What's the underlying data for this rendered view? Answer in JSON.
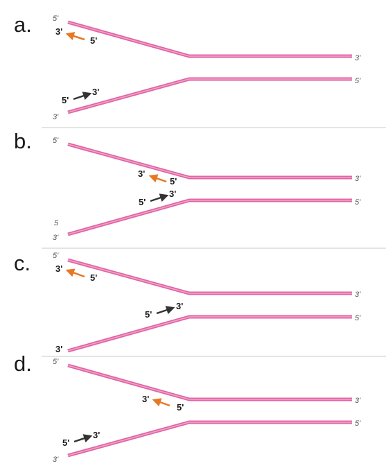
{
  "colors": {
    "strand": "#e064a4",
    "strand_highlight": "#f2a3c9",
    "primer_orange": "#e87722",
    "primer_dark": "#333333",
    "divider": "#c8c8c8"
  },
  "panels": [
    {
      "letter": "a.",
      "top_left_end": "5'",
      "top_right_end": "3'",
      "bottom_left_end": "3'",
      "bottom_right_end": "5'",
      "orange_primer": {
        "three_prime": "3'",
        "five_prime": "5'"
      },
      "dark_primer": {
        "five_prime": "5'",
        "three_prime": "3'"
      }
    },
    {
      "letter": "b.",
      "top_left_end": "5'",
      "top_right_end": "3'",
      "bottom_left_end_upper": "5",
      "bottom_left_end": "3'",
      "bottom_right_end": "5'",
      "orange_primer": {
        "three_prime": "3'",
        "five_prime": "5'"
      },
      "dark_primer": {
        "five_prime": "5'",
        "three_prime": "3'"
      }
    },
    {
      "letter": "c.",
      "top_left_end": "5'",
      "top_right_end": "3'",
      "bottom_left_end": "3'",
      "bottom_right_end": "5'",
      "orange_primer": {
        "three_prime": "3'",
        "five_prime": "5'"
      },
      "dark_primer": {
        "five_prime": "5'",
        "three_prime": "3'"
      }
    },
    {
      "letter": "d.",
      "top_left_end": "5'",
      "top_right_end": "3'",
      "bottom_left_end": "3'",
      "bottom_right_end": "5'",
      "orange_primer": {
        "three_prime": "3'",
        "five_prime": "5'"
      },
      "dark_primer": {
        "five_prime": "5'",
        "three_prime": "3'"
      }
    }
  ]
}
